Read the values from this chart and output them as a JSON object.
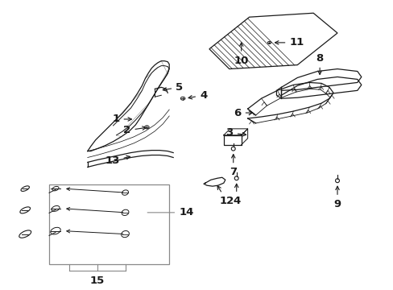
{
  "background_color": "#ffffff",
  "line_color": "#1a1a1a",
  "gray_color": "#888888",
  "fig_width": 4.89,
  "fig_height": 3.6,
  "dpi": 100
}
